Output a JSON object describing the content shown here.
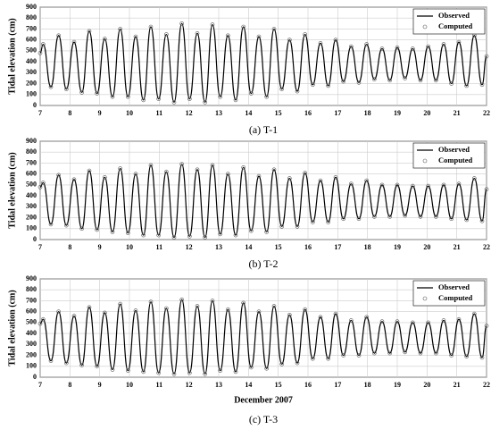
{
  "chart_data": [
    {
      "type": "line",
      "caption": "(a) T-1",
      "y_label": "Tidal elevation (cm)",
      "x": [
        7,
        7.1,
        7.36,
        7.62,
        7.88,
        8.14,
        8.4,
        8.65,
        8.91,
        9.17,
        9.43,
        9.69,
        9.95,
        10.21,
        10.47,
        10.72,
        10.98,
        11.24,
        11.5,
        11.76,
        12.02,
        12.28,
        12.54,
        12.79,
        13.05,
        13.31,
        13.57,
        13.83,
        14.09,
        14.35,
        14.61,
        14.86,
        15.12,
        15.38,
        15.64,
        15.9,
        16.16,
        16.42,
        16.68,
        16.93,
        17.19,
        17.45,
        17.71,
        17.97,
        18.23,
        18.49,
        18.75,
        19.0,
        19.26,
        19.52,
        19.78,
        20.04,
        20.3,
        20.56,
        20.82,
        21.07,
        21.33,
        21.59,
        21.85,
        22
      ],
      "series": [
        {
          "name": "Observed",
          "color": "#000000",
          "values": [
            480,
            560,
            170,
            640,
            150,
            580,
            120,
            680,
            110,
            610,
            80,
            700,
            80,
            630,
            50,
            720,
            60,
            650,
            30,
            750,
            60,
            660,
            30,
            740,
            80,
            640,
            50,
            720,
            110,
            630,
            80,
            700,
            150,
            600,
            130,
            650,
            190,
            570,
            180,
            600,
            220,
            540,
            210,
            560,
            240,
            520,
            230,
            530,
            250,
            520,
            230,
            540,
            230,
            560,
            200,
            580,
            180,
            640,
            190,
            450
          ]
        },
        {
          "name": "Computed",
          "color": "#555555",
          "values": [
            480,
            560,
            170,
            640,
            150,
            580,
            120,
            680,
            110,
            610,
            80,
            700,
            80,
            630,
            50,
            720,
            60,
            650,
            30,
            750,
            60,
            660,
            30,
            740,
            80,
            640,
            50,
            720,
            110,
            630,
            80,
            700,
            150,
            600,
            130,
            650,
            190,
            570,
            180,
            600,
            220,
            540,
            210,
            560,
            240,
            520,
            230,
            530,
            250,
            520,
            230,
            540,
            230,
            560,
            200,
            580,
            180,
            640,
            190,
            450
          ]
        }
      ],
      "xlim": [
        7,
        22
      ],
      "xticks": [
        7,
        8,
        9,
        10,
        11,
        12,
        13,
        14,
        15,
        16,
        17,
        18,
        19,
        20,
        21,
        22
      ],
      "ylim": [
        0,
        900
      ],
      "yticks": [
        0,
        100,
        200,
        300,
        400,
        500,
        600,
        700,
        800,
        900
      ],
      "grid": true,
      "legend": "top-right"
    },
    {
      "type": "line",
      "caption": "(b) T-2",
      "y_label": "Tidal elevation (cm)",
      "x": [
        7,
        7.1,
        7.36,
        7.62,
        7.88,
        8.14,
        8.4,
        8.65,
        8.91,
        9.17,
        9.43,
        9.69,
        9.95,
        10.21,
        10.47,
        10.72,
        10.98,
        11.24,
        11.5,
        11.76,
        12.02,
        12.28,
        12.54,
        12.79,
        13.05,
        13.31,
        13.57,
        13.83,
        14.09,
        14.35,
        14.61,
        14.86,
        15.12,
        15.38,
        15.64,
        15.9,
        16.16,
        16.42,
        16.68,
        16.93,
        17.19,
        17.45,
        17.71,
        17.97,
        18.23,
        18.49,
        18.75,
        19.0,
        19.26,
        19.52,
        19.78,
        20.04,
        20.3,
        20.56,
        20.82,
        21.07,
        21.33,
        21.59,
        21.85,
        22
      ],
      "series": [
        {
          "name": "Observed",
          "color": "#000000",
          "values": [
            480,
            520,
            140,
            590,
            130,
            550,
            100,
            630,
            90,
            570,
            70,
            650,
            60,
            600,
            40,
            680,
            40,
            620,
            20,
            690,
            30,
            640,
            20,
            680,
            50,
            600,
            40,
            660,
            80,
            580,
            70,
            640,
            120,
            560,
            120,
            610,
            160,
            540,
            160,
            570,
            190,
            510,
            190,
            540,
            210,
            500,
            210,
            500,
            220,
            490,
            210,
            490,
            210,
            500,
            190,
            510,
            180,
            560,
            170,
            460
          ]
        },
        {
          "name": "Computed",
          "color": "#555555",
          "values": [
            480,
            520,
            140,
            590,
            130,
            550,
            100,
            630,
            90,
            570,
            70,
            650,
            60,
            600,
            40,
            680,
            40,
            620,
            20,
            690,
            30,
            640,
            20,
            680,
            50,
            600,
            40,
            660,
            80,
            580,
            70,
            640,
            120,
            560,
            120,
            610,
            160,
            540,
            160,
            570,
            190,
            510,
            190,
            540,
            210,
            500,
            210,
            500,
            220,
            490,
            210,
            490,
            210,
            500,
            190,
            510,
            180,
            560,
            170,
            460
          ]
        }
      ],
      "xlim": [
        7,
        22
      ],
      "xticks": [
        7,
        8,
        9,
        10,
        11,
        12,
        13,
        14,
        15,
        16,
        17,
        18,
        19,
        20,
        21,
        22
      ],
      "ylim": [
        0,
        900
      ],
      "yticks": [
        0,
        100,
        200,
        300,
        400,
        500,
        600,
        700,
        800,
        900
      ],
      "grid": true,
      "legend": "top-right"
    },
    {
      "type": "line",
      "caption": "(c) T-3",
      "y_label": "Tidal elevation (cm)",
      "x_label": "December 2007",
      "x": [
        7,
        7.1,
        7.36,
        7.62,
        7.88,
        8.14,
        8.4,
        8.65,
        8.91,
        9.17,
        9.43,
        9.69,
        9.95,
        10.21,
        10.47,
        10.72,
        10.98,
        11.24,
        11.5,
        11.76,
        12.02,
        12.28,
        12.54,
        12.79,
        13.05,
        13.31,
        13.57,
        13.83,
        14.09,
        14.35,
        14.61,
        14.86,
        15.12,
        15.38,
        15.64,
        15.9,
        16.16,
        16.42,
        16.68,
        16.93,
        17.19,
        17.45,
        17.71,
        17.97,
        18.23,
        18.49,
        18.75,
        19.0,
        19.26,
        19.52,
        19.78,
        20.04,
        20.3,
        20.56,
        20.82,
        21.07,
        21.33,
        21.59,
        21.85,
        22
      ],
      "series": [
        {
          "name": "Observed",
          "color": "#000000",
          "values": [
            490,
            530,
            150,
            600,
            130,
            560,
            110,
            640,
            100,
            590,
            70,
            670,
            60,
            610,
            50,
            690,
            40,
            630,
            30,
            710,
            40,
            650,
            30,
            700,
            60,
            620,
            50,
            680,
            90,
            600,
            80,
            650,
            120,
            570,
            130,
            620,
            170,
            550,
            170,
            580,
            200,
            520,
            200,
            550,
            220,
            510,
            220,
            510,
            230,
            500,
            220,
            500,
            220,
            520,
            200,
            530,
            190,
            580,
            180,
            470
          ]
        },
        {
          "name": "Computed",
          "color": "#555555",
          "values": [
            490,
            530,
            150,
            600,
            130,
            560,
            110,
            640,
            100,
            590,
            70,
            670,
            60,
            610,
            50,
            690,
            40,
            630,
            30,
            710,
            40,
            650,
            30,
            700,
            60,
            620,
            50,
            680,
            90,
            600,
            80,
            650,
            120,
            570,
            130,
            620,
            170,
            550,
            170,
            580,
            200,
            520,
            200,
            550,
            220,
            510,
            220,
            510,
            230,
            500,
            220,
            500,
            220,
            520,
            200,
            530,
            190,
            580,
            180,
            470
          ]
        }
      ],
      "xlim": [
        7,
        22
      ],
      "xticks": [
        7,
        8,
        9,
        10,
        11,
        12,
        13,
        14,
        15,
        16,
        17,
        18,
        19,
        20,
        21,
        22
      ],
      "ylim": [
        0,
        900
      ],
      "yticks": [
        0,
        100,
        200,
        300,
        400,
        500,
        600,
        700,
        800,
        900
      ],
      "grid": true,
      "legend": "top-right"
    }
  ]
}
